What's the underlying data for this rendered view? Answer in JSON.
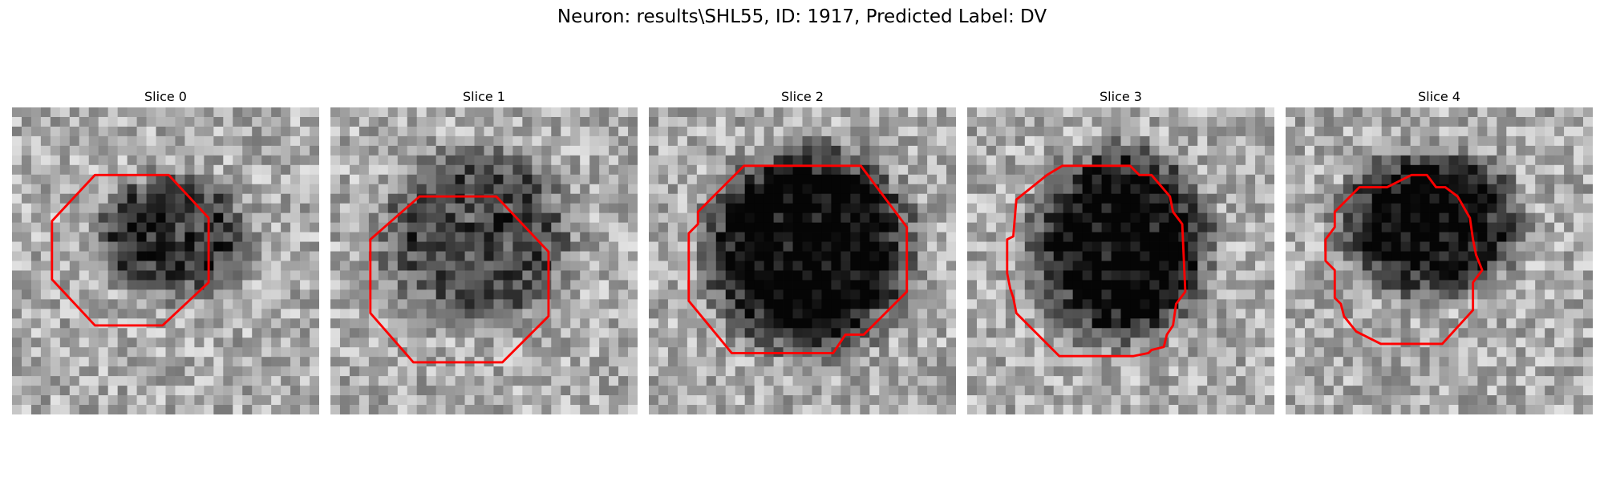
{
  "figure": {
    "title": "Neuron: results\\SHL55, ID: 1917, Predicted Label: DV",
    "contour_color": "#ff0000"
  },
  "slices": [
    {
      "label": "Slice 0",
      "seed": 11,
      "blob": [
        0.52,
        0.42,
        0.24,
        0.19
      ],
      "darkness": 0.55,
      "contour": [
        [
          0.27,
          0.22
        ],
        [
          0.51,
          0.22
        ],
        [
          0.64,
          0.36
        ],
        [
          0.64,
          0.57
        ],
        [
          0.49,
          0.71
        ],
        [
          0.27,
          0.71
        ],
        [
          0.13,
          0.56
        ],
        [
          0.13,
          0.37
        ]
      ]
    },
    {
      "label": "Slice 1",
      "seed": 23,
      "blob": [
        0.48,
        0.42,
        0.3,
        0.28
      ],
      "darkness": 0.45,
      "contour": [
        [
          0.29,
          0.29
        ],
        [
          0.54,
          0.29
        ],
        [
          0.71,
          0.47
        ],
        [
          0.71,
          0.68
        ],
        [
          0.56,
          0.83
        ],
        [
          0.27,
          0.83
        ],
        [
          0.13,
          0.67
        ],
        [
          0.13,
          0.43
        ]
      ]
    },
    {
      "label": "Slice 2",
      "seed": 37,
      "blob": [
        0.52,
        0.46,
        0.32,
        0.32
      ],
      "darkness": 0.8,
      "contour": [
        [
          0.31,
          0.19
        ],
        [
          0.69,
          0.19
        ],
        [
          0.84,
          0.39
        ],
        [
          0.84,
          0.6
        ],
        [
          0.7,
          0.74
        ],
        [
          0.64,
          0.74
        ],
        [
          0.6,
          0.8
        ],
        [
          0.27,
          0.8
        ],
        [
          0.13,
          0.63
        ],
        [
          0.13,
          0.41
        ],
        [
          0.16,
          0.38
        ],
        [
          0.16,
          0.34
        ]
      ]
    },
    {
      "label": "Slice 3",
      "seed": 51,
      "blob": [
        0.5,
        0.45,
        0.28,
        0.3
      ],
      "darkness": 0.75,
      "contour": [
        [
          0.31,
          0.19
        ],
        [
          0.53,
          0.19
        ],
        [
          0.56,
          0.22
        ],
        [
          0.6,
          0.22
        ],
        [
          0.66,
          0.29
        ],
        [
          0.67,
          0.34
        ],
        [
          0.7,
          0.38
        ],
        [
          0.71,
          0.6
        ],
        [
          0.68,
          0.64
        ],
        [
          0.67,
          0.71
        ],
        [
          0.65,
          0.74
        ],
        [
          0.64,
          0.78
        ],
        [
          0.6,
          0.79
        ],
        [
          0.59,
          0.8
        ],
        [
          0.54,
          0.81
        ],
        [
          0.3,
          0.81
        ],
        [
          0.16,
          0.67
        ],
        [
          0.15,
          0.62
        ],
        [
          0.14,
          0.59
        ],
        [
          0.13,
          0.54
        ],
        [
          0.13,
          0.43
        ],
        [
          0.15,
          0.42
        ],
        [
          0.16,
          0.3
        ],
        [
          0.26,
          0.22
        ]
      ]
    },
    {
      "label": "Slice 4",
      "seed": 67,
      "blob": [
        0.47,
        0.38,
        0.28,
        0.23
      ],
      "darkness": 0.7,
      "contour": [
        [
          0.33,
          0.26
        ],
        [
          0.41,
          0.22
        ],
        [
          0.46,
          0.22
        ],
        [
          0.49,
          0.26
        ],
        [
          0.52,
          0.26
        ],
        [
          0.56,
          0.29
        ],
        [
          0.6,
          0.36
        ],
        [
          0.61,
          0.43
        ],
        [
          0.62,
          0.48
        ],
        [
          0.64,
          0.53
        ],
        [
          0.61,
          0.57
        ],
        [
          0.61,
          0.66
        ],
        [
          0.51,
          0.77
        ],
        [
          0.31,
          0.77
        ],
        [
          0.23,
          0.73
        ],
        [
          0.19,
          0.68
        ],
        [
          0.18,
          0.64
        ],
        [
          0.16,
          0.62
        ],
        [
          0.16,
          0.53
        ],
        [
          0.13,
          0.5
        ],
        [
          0.13,
          0.43
        ],
        [
          0.16,
          0.39
        ],
        [
          0.16,
          0.34
        ],
        [
          0.24,
          0.26
        ]
      ]
    }
  ]
}
